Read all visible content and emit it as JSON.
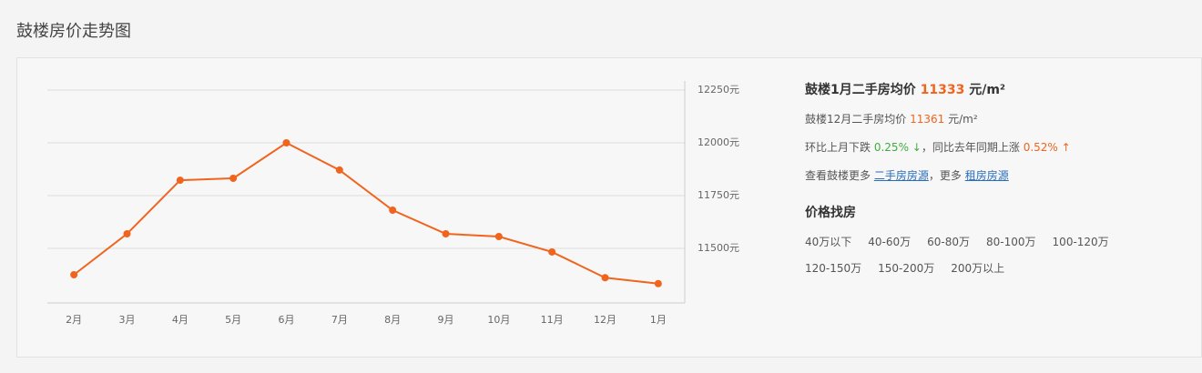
{
  "header": {
    "title": "鼓楼房价走势图"
  },
  "chart_data": {
    "type": "line",
    "categories": [
      "2月",
      "3月",
      "4月",
      "5月",
      "6月",
      "7月",
      "8月",
      "9月",
      "10月",
      "11月",
      "12月",
      "1月"
    ],
    "values": [
      11375,
      11569,
      11823,
      11832,
      12000,
      11871,
      11681,
      11569,
      11556,
      11483,
      11361,
      11333
    ],
    "color": "#f0641e",
    "ylim": [
      11250,
      12250
    ],
    "yticks": [
      {
        "value": 11500,
        "label": "11500元"
      },
      {
        "value": 11750,
        "label": "11750元"
      },
      {
        "value": 12000,
        "label": "12000元"
      },
      {
        "value": 12250,
        "label": "12250元"
      }
    ],
    "grid": true,
    "y_axis_side": "right"
  },
  "info": {
    "current": {
      "label": "鼓楼1月二手房均价",
      "value": 11333,
      "unit": "元/m²"
    },
    "previous": {
      "label": "鼓楼12月二手房均价",
      "value": 11361,
      "unit": "元/m²"
    },
    "change": {
      "mom_label": "环比上月下跌",
      "mom": "0.25% ↓",
      "yoy_label": "，同比去年同期上涨",
      "yoy": "0.52% ↑"
    },
    "more": {
      "prefix": "查看鼓楼更多",
      "link1": "二手房房源",
      "mid": "，更多",
      "link2": "租房房源"
    },
    "search_title": "价格找房",
    "price_ranges": [
      "40万以下",
      "40-60万",
      "60-80万",
      "80-100万",
      "100-120万",
      "120-150万",
      "150-200万",
      "200万以上"
    ]
  }
}
